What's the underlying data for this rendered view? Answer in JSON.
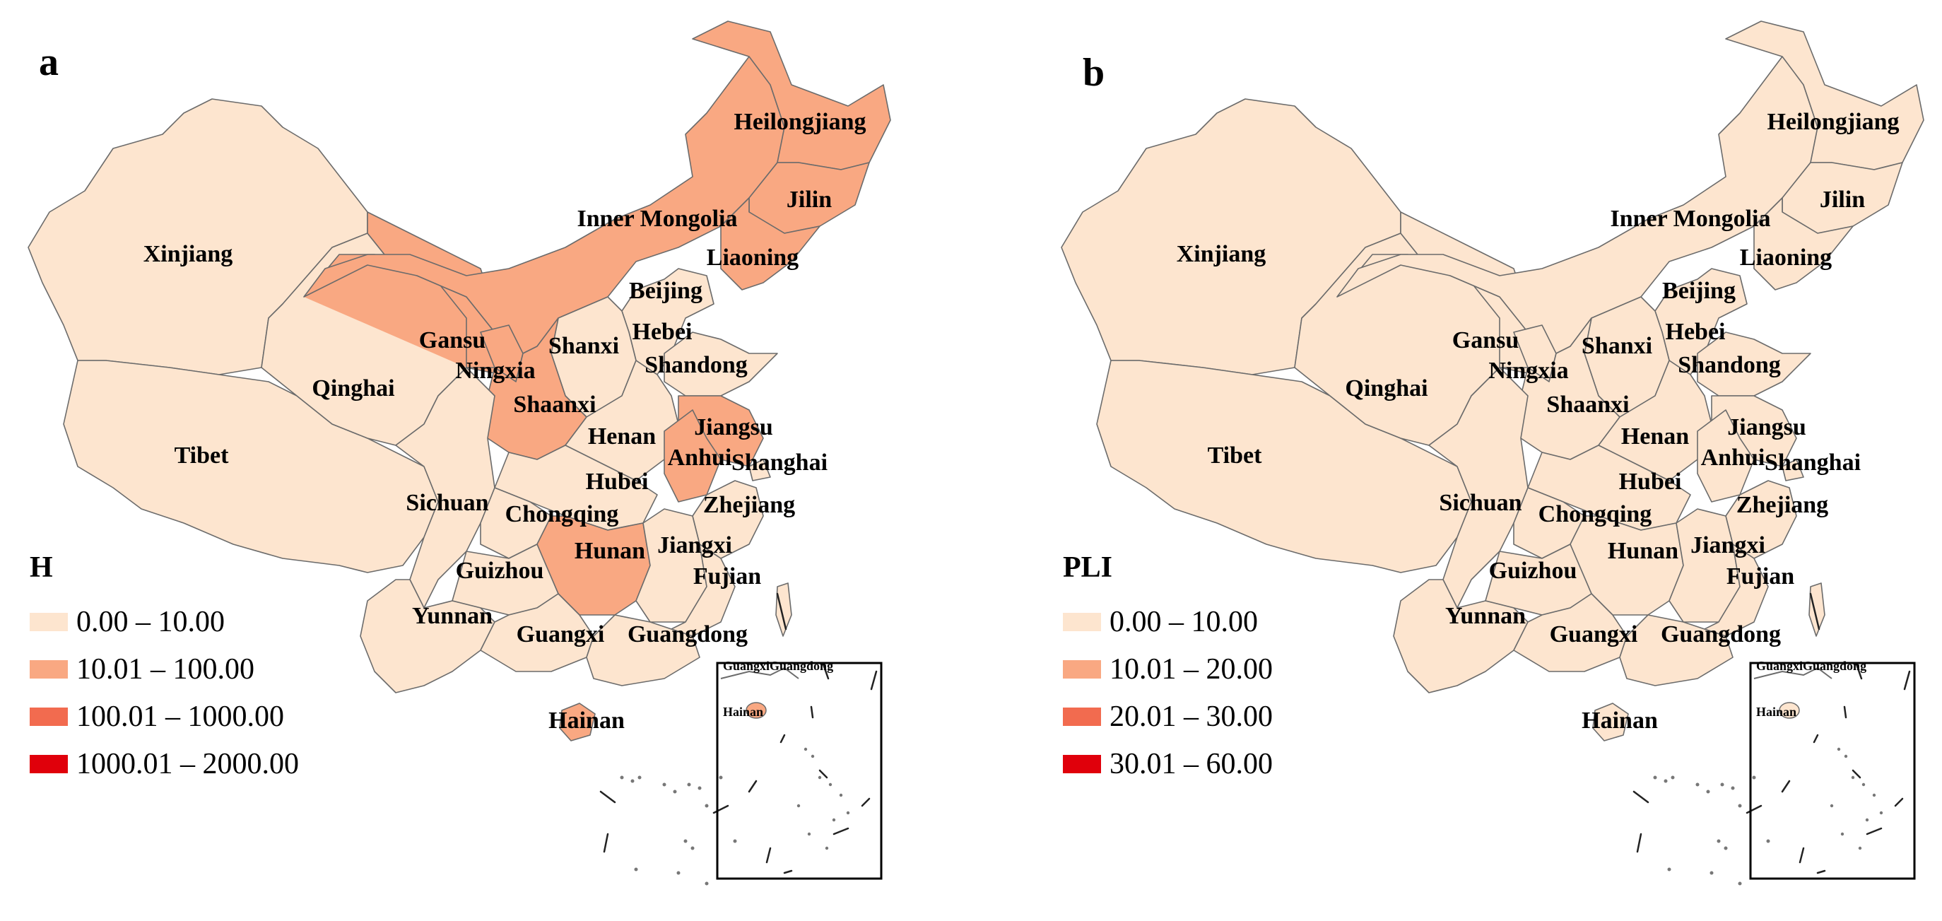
{
  "colors": {
    "class1": "#fde5cf",
    "class2": "#f9a882",
    "class3": "#f26b4f",
    "class4": "#e0000b",
    "border": "#6b6b6b"
  },
  "panels": [
    {
      "letter": "a",
      "legend": {
        "title": "H",
        "classes": [
          "0.00 – 10.00",
          "10.01 – 100.00",
          "100.01 – 1000.00",
          "1000.01 – 2000.00"
        ]
      },
      "province_class": {
        "Xinjiang": 1,
        "Tibet": 1,
        "Qinghai": 1,
        "Gansu": 2,
        "Inner Mongolia": 2,
        "Heilongjiang": 2,
        "Jilin": 2,
        "Liaoning": 2,
        "Beijing": 1,
        "Hebei": 1,
        "Shanxi": 1,
        "Shandong": 1,
        "Ningxia": 2,
        "Shaanxi": 2,
        "Henan": 1,
        "Jiangsu": 2,
        "Anhui": 2,
        "Shanghai": 1,
        "Hubei": 1,
        "Sichuan": 1,
        "Chongqing": 1,
        "Zhejiang": 1,
        "Hunan": 2,
        "Jiangxi": 1,
        "Guizhou": 1,
        "Fujian": 1,
        "Yunnan": 1,
        "Guangxi": 1,
        "Guangdong": 1,
        "Hainan": 2,
        "Taiwan": 1
      },
      "inset": {
        "labels": [
          "GuangxiGuangdong",
          "Hainan"
        ]
      }
    },
    {
      "letter": "b",
      "legend": {
        "title": "PLI",
        "classes": [
          "0.00 – 10.00",
          "10.01 – 20.00",
          "20.01 – 30.00",
          "30.01 – 60.00"
        ]
      },
      "province_class": {
        "Xinjiang": 1,
        "Tibet": 1,
        "Qinghai": 1,
        "Gansu": 1,
        "Inner Mongolia": 1,
        "Heilongjiang": 1,
        "Jilin": 1,
        "Liaoning": 1,
        "Beijing": 1,
        "Hebei": 1,
        "Shanxi": 1,
        "Shandong": 1,
        "Ningxia": 1,
        "Shaanxi": 1,
        "Henan": 1,
        "Jiangsu": 1,
        "Anhui": 1,
        "Shanghai": 1,
        "Hubei": 1,
        "Sichuan": 1,
        "Chongqing": 1,
        "Zhejiang": 1,
        "Hunan": 1,
        "Jiangxi": 1,
        "Guizhou": 1,
        "Fujian": 1,
        "Yunnan": 1,
        "Guangxi": 1,
        "Guangdong": 1,
        "Hainan": 1,
        "Taiwan": 1
      },
      "inset": {
        "labels": [
          "GuangxiGuangdong",
          "Hainan"
        ]
      }
    }
  ],
  "province_labels": [
    "Xinjiang",
    "Tibet",
    "Qinghai",
    "Gansu",
    "Inner Mongolia",
    "Heilongjiang",
    "Jilin",
    "Liaoning",
    "Beijing",
    "Hebei",
    "Shanxi",
    "Shandong",
    "Ningxia",
    "Shaanxi",
    "Henan",
    "Jiangsu",
    "Anhui",
    "Shanghai",
    "Hubei",
    "Sichuan",
    "Chongqing",
    "Zhejiang",
    "Hunan",
    "Jiangxi",
    "Guizhou",
    "Fujian",
    "Yunnan",
    "Guangxi",
    "Guangdong",
    "Hainan"
  ]
}
